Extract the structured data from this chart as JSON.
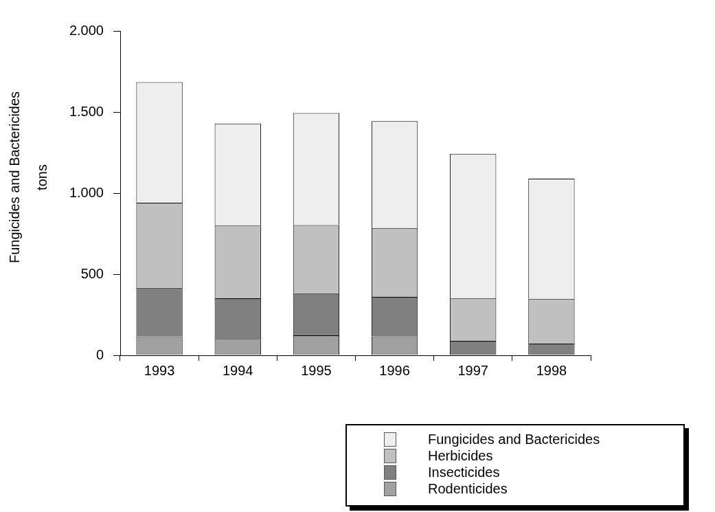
{
  "chart_data": {
    "type": "bar",
    "stacked": true,
    "ylabel": "Fungicides and Bactericides\ntons",
    "categories": [
      "1993",
      "1994",
      "1995",
      "1996",
      "1997",
      "1998"
    ],
    "series": [
      {
        "name": "Rodenticides",
        "color": "#a0a0a0",
        "values": [
          116,
          101,
          123,
          116,
          0,
          0
        ]
      },
      {
        "name": "Insecticides",
        "color": "#808080",
        "values": [
          300,
          251,
          259,
          244,
          89,
          72
        ]
      },
      {
        "name": "Herbicides",
        "color": "#c0c0c0",
        "values": [
          525,
          448,
          421,
          425,
          264,
          277
        ]
      },
      {
        "name": "Fungicides and Bactericides",
        "color": "#eeeeee",
        "values": [
          743,
          629,
          691,
          659,
          890,
          740
        ]
      }
    ],
    "ylim": [
      0,
      2000
    ],
    "yticks": [
      0,
      {
        "value": 500,
        "label": "500"
      },
      {
        "value": 1000,
        "label": "1.000"
      },
      {
        "value": 1500,
        "label": "1.500"
      },
      {
        "value": 2000,
        "label": "2.000"
      }
    ],
    "grid": false,
    "legend": "bottom right"
  }
}
